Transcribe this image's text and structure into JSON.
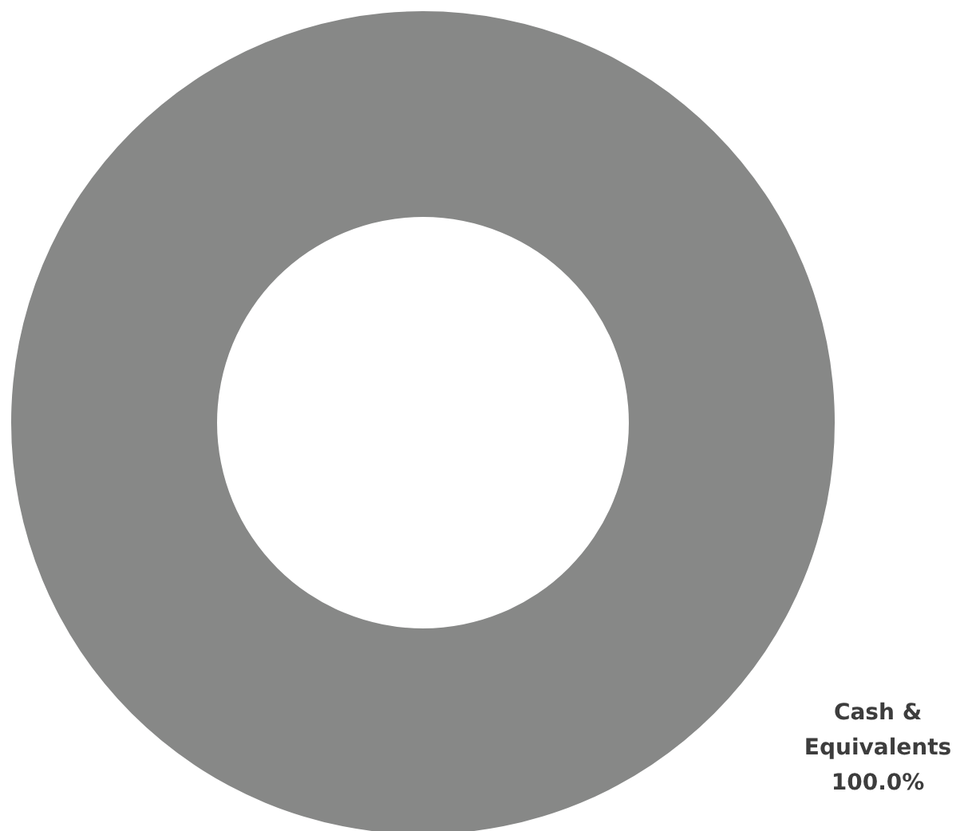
{
  "chart_data": {
    "type": "donut",
    "categories": [
      "Cash & Equivalents"
    ],
    "values": [
      100
    ],
    "colors": [
      "#878887"
    ],
    "value_labels": [
      "100.0%"
    ]
  }
}
